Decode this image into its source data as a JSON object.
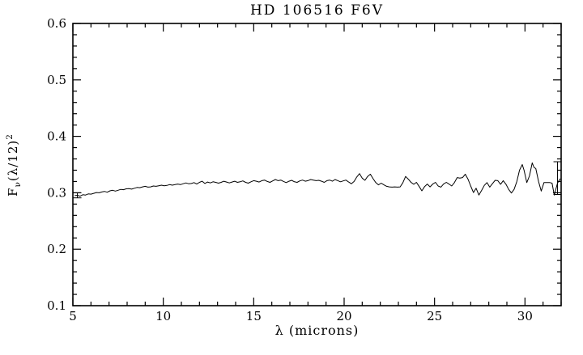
{
  "window": {
    "background": "#ffffff",
    "foreground": "#000000"
  },
  "chart_data": {
    "type": "line",
    "title": "HD 106516 F6V",
    "xlabel": "λ (microns)",
    "ylabel": "Fν(λ/12)²",
    "ylabel_parts": {
      "base": "F",
      "sub": "ν",
      "mid": "(λ/12)",
      "sup": "2"
    },
    "xlim": [
      5,
      32
    ],
    "ylim": [
      0.1,
      0.6
    ],
    "grid": false,
    "legend": "none",
    "line_color": "#000000",
    "xticks": {
      "major": [
        5,
        10,
        15,
        20,
        25,
        30
      ],
      "labels": [
        "5",
        "10",
        "15",
        "20",
        "25",
        "30"
      ],
      "minor_step": 1
    },
    "yticks": {
      "major": [
        0.1,
        0.2,
        0.3,
        0.4,
        0.5,
        0.6
      ],
      "labels": [
        "0.1",
        "0.2",
        "0.3",
        "0.4",
        "0.5",
        "0.6"
      ],
      "minor_step": 0.02
    },
    "series": [
      {
        "name": "HD 106516 spectrum",
        "points": [
          [
            5.1,
            0.295
          ],
          [
            5.25,
            0.2955
          ],
          [
            5.4,
            0.294
          ],
          [
            5.55,
            0.2965
          ],
          [
            5.7,
            0.296
          ],
          [
            5.85,
            0.298
          ],
          [
            6.0,
            0.2975
          ],
          [
            6.15,
            0.299
          ],
          [
            6.3,
            0.3005
          ],
          [
            6.45,
            0.3
          ],
          [
            6.6,
            0.3015
          ],
          [
            6.75,
            0.3025
          ],
          [
            6.9,
            0.301
          ],
          [
            7.05,
            0.3035
          ],
          [
            7.2,
            0.3045
          ],
          [
            7.35,
            0.303
          ],
          [
            7.5,
            0.3045
          ],
          [
            7.65,
            0.306
          ],
          [
            7.8,
            0.3055
          ],
          [
            7.95,
            0.307
          ],
          [
            8.1,
            0.3075
          ],
          [
            8.25,
            0.3065
          ],
          [
            8.4,
            0.308
          ],
          [
            8.55,
            0.3095
          ],
          [
            8.7,
            0.309
          ],
          [
            8.85,
            0.3105
          ],
          [
            9.0,
            0.3115
          ],
          [
            9.15,
            0.31
          ],
          [
            9.3,
            0.3105
          ],
          [
            9.45,
            0.312
          ],
          [
            9.6,
            0.3115
          ],
          [
            9.75,
            0.3125
          ],
          [
            9.9,
            0.3135
          ],
          [
            10.05,
            0.3125
          ],
          [
            10.2,
            0.313
          ],
          [
            10.35,
            0.3145
          ],
          [
            10.5,
            0.3135
          ],
          [
            10.65,
            0.3145
          ],
          [
            10.8,
            0.3155
          ],
          [
            10.95,
            0.3145
          ],
          [
            11.1,
            0.316
          ],
          [
            11.25,
            0.3175
          ],
          [
            11.4,
            0.316
          ],
          [
            11.55,
            0.3165
          ],
          [
            11.7,
            0.318
          ],
          [
            11.85,
            0.3155
          ],
          [
            12.0,
            0.3185
          ],
          [
            12.15,
            0.3205
          ],
          [
            12.3,
            0.3165
          ],
          [
            12.45,
            0.319
          ],
          [
            12.6,
            0.3175
          ],
          [
            12.75,
            0.3195
          ],
          [
            12.9,
            0.3185
          ],
          [
            13.05,
            0.317
          ],
          [
            13.2,
            0.3185
          ],
          [
            13.35,
            0.3205
          ],
          [
            13.5,
            0.319
          ],
          [
            13.65,
            0.3175
          ],
          [
            13.8,
            0.319
          ],
          [
            13.95,
            0.3205
          ],
          [
            14.1,
            0.3185
          ],
          [
            14.25,
            0.3195
          ],
          [
            14.4,
            0.321
          ],
          [
            14.55,
            0.3185
          ],
          [
            14.7,
            0.317
          ],
          [
            14.85,
            0.3195
          ],
          [
            15.0,
            0.3215
          ],
          [
            15.15,
            0.3205
          ],
          [
            15.3,
            0.319
          ],
          [
            15.45,
            0.3215
          ],
          [
            15.6,
            0.3225
          ],
          [
            15.75,
            0.32
          ],
          [
            15.9,
            0.3185
          ],
          [
            16.05,
            0.321
          ],
          [
            16.2,
            0.3235
          ],
          [
            16.35,
            0.3215
          ],
          [
            16.5,
            0.3225
          ],
          [
            16.65,
            0.32
          ],
          [
            16.8,
            0.318
          ],
          [
            16.95,
            0.3205
          ],
          [
            17.1,
            0.322
          ],
          [
            17.25,
            0.3195
          ],
          [
            17.4,
            0.3185
          ],
          [
            17.55,
            0.321
          ],
          [
            17.7,
            0.3225
          ],
          [
            17.85,
            0.3205
          ],
          [
            18.0,
            0.3215
          ],
          [
            18.15,
            0.3235
          ],
          [
            18.3,
            0.3225
          ],
          [
            18.45,
            0.3215
          ],
          [
            18.6,
            0.322
          ],
          [
            18.75,
            0.3205
          ],
          [
            18.9,
            0.3185
          ],
          [
            19.05,
            0.3215
          ],
          [
            19.2,
            0.3225
          ],
          [
            19.35,
            0.3205
          ],
          [
            19.5,
            0.3235
          ],
          [
            19.65,
            0.3215
          ],
          [
            19.8,
            0.3195
          ],
          [
            19.95,
            0.321
          ],
          [
            20.1,
            0.3225
          ],
          [
            20.25,
            0.319
          ],
          [
            20.4,
            0.316
          ],
          [
            20.55,
            0.32
          ],
          [
            20.7,
            0.328
          ],
          [
            20.85,
            0.334
          ],
          [
            21.0,
            0.326
          ],
          [
            21.15,
            0.322
          ],
          [
            21.3,
            0.329
          ],
          [
            21.45,
            0.333
          ],
          [
            21.6,
            0.325
          ],
          [
            21.75,
            0.318
          ],
          [
            21.9,
            0.314
          ],
          [
            22.05,
            0.317
          ],
          [
            22.2,
            0.314
          ],
          [
            22.35,
            0.3115
          ],
          [
            22.5,
            0.3105
          ],
          [
            22.65,
            0.31
          ],
          [
            22.8,
            0.3105
          ],
          [
            22.95,
            0.31
          ],
          [
            23.1,
            0.3105
          ],
          [
            23.25,
            0.318
          ],
          [
            23.4,
            0.329
          ],
          [
            23.55,
            0.324
          ],
          [
            23.7,
            0.3185
          ],
          [
            23.85,
            0.315
          ],
          [
            24.0,
            0.3185
          ],
          [
            24.15,
            0.311
          ],
          [
            24.3,
            0.3035
          ],
          [
            24.45,
            0.311
          ],
          [
            24.6,
            0.3155
          ],
          [
            24.75,
            0.3105
          ],
          [
            24.9,
            0.3155
          ],
          [
            25.05,
            0.3185
          ],
          [
            25.2,
            0.312
          ],
          [
            25.35,
            0.31
          ],
          [
            25.5,
            0.3155
          ],
          [
            25.65,
            0.3185
          ],
          [
            25.8,
            0.3155
          ],
          [
            25.95,
            0.312
          ],
          [
            26.1,
            0.318
          ],
          [
            26.25,
            0.327
          ],
          [
            26.4,
            0.326
          ],
          [
            26.55,
            0.327
          ],
          [
            26.7,
            0.333
          ],
          [
            26.85,
            0.324
          ],
          [
            27.0,
            0.312
          ],
          [
            27.15,
            0.3005
          ],
          [
            27.3,
            0.308
          ],
          [
            27.45,
            0.296
          ],
          [
            27.6,
            0.304
          ],
          [
            27.75,
            0.313
          ],
          [
            27.9,
            0.318
          ],
          [
            28.05,
            0.31
          ],
          [
            28.2,
            0.316
          ],
          [
            28.35,
            0.322
          ],
          [
            28.5,
            0.3215
          ],
          [
            28.65,
            0.315
          ],
          [
            28.8,
            0.3215
          ],
          [
            28.95,
            0.315
          ],
          [
            29.1,
            0.306
          ],
          [
            29.25,
            0.2995
          ],
          [
            29.4,
            0.306
          ],
          [
            29.55,
            0.32
          ],
          [
            29.7,
            0.34
          ],
          [
            29.85,
            0.35
          ],
          [
            29.95,
            0.34
          ],
          [
            30.1,
            0.318
          ],
          [
            30.25,
            0.33
          ],
          [
            30.4,
            0.353
          ],
          [
            30.5,
            0.345
          ],
          [
            30.6,
            0.343
          ],
          [
            30.75,
            0.32
          ],
          [
            30.9,
            0.303
          ],
          [
            31.05,
            0.318
          ],
          [
            31.2,
            0.318
          ],
          [
            31.38,
            0.318
          ],
          [
            31.5,
            0.317
          ],
          [
            31.62,
            0.296
          ],
          [
            31.8,
            0.317
          ],
          [
            31.95,
            0.325
          ]
        ]
      }
    ],
    "error_bars": [
      {
        "x": 5.25,
        "y": 0.2955,
        "lo": 0.291,
        "hi": 0.3
      },
      {
        "x": 31.8,
        "y": 0.317,
        "lo": 0.297,
        "hi": 0.355
      }
    ]
  }
}
